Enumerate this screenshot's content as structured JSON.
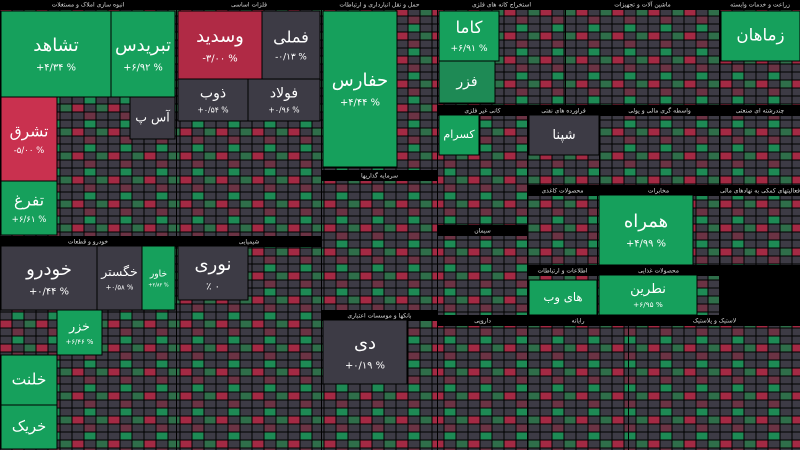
{
  "chart_data": {
    "type": "treemap",
    "sectors": [
      {
        "title": "انبوه سازی املاک و مستغلات"
      },
      {
        "title": "فلزات اساسی"
      },
      {
        "title": "حمل و نقل انبارداری و ارتباطات"
      },
      {
        "title": "استخراج کانه های فلزی"
      },
      {
        "title": "ماشین آلات و تجهیزات"
      },
      {
        "title": "زراعت و خدمات وابسته"
      },
      {
        "title": "خودرو و قطعات"
      },
      {
        "title": "شیمیایی"
      },
      {
        "title": "سرمایه گذاریها"
      },
      {
        "title": "بانکها و موسسات اعتباری"
      },
      {
        "title": "کانی غیر فلزی"
      },
      {
        "title": "فراورده های نفتی"
      },
      {
        "title": "واسطه گری مالی و پولی"
      },
      {
        "title": "چندرشته ای صنعتی"
      },
      {
        "title": "سیمان"
      },
      {
        "title": "محصولات کاغذی"
      },
      {
        "title": "مخابرات"
      },
      {
        "title": "فعالیتهای کمکی به نهادهای مالی"
      },
      {
        "title": "اطلاعات و ارتباطات"
      },
      {
        "title": "محصولات غذایی"
      },
      {
        "title": "دارویی"
      },
      {
        "title": "رایانه"
      },
      {
        "title": "لاستیک و پلاستیک"
      }
    ],
    "tiles": [
      {
        "name": "تشاهد",
        "change": "+۴/۳۴ %",
        "color": "#16a05c"
      },
      {
        "name": "تبریدس",
        "change": "+۶/۹۲ %",
        "color": "#16a05c"
      },
      {
        "name": "تشرق",
        "change": "-۵/۰۰ %",
        "color": "#c9314f"
      },
      {
        "name": "تفرغ",
        "change": "+۶/۶۱ %",
        "color": "#16a05c"
      },
      {
        "name": "آس پ",
        "color": "#3d3b45"
      },
      {
        "name": "وسدید",
        "change": "-۳/۰۰ %",
        "color": "#b02a45"
      },
      {
        "name": "فملی",
        "change": "-۰/۱۳ %",
        "color": "#3d3b45"
      },
      {
        "name": "ذوب",
        "change": "+۰/۵۴ %",
        "color": "#3d3b45"
      },
      {
        "name": "فولاد",
        "change": "+۰/۹۶ %",
        "color": "#3d3b45"
      },
      {
        "name": "حفارس",
        "change": "+۴/۴۴ %",
        "color": "#16a05c"
      },
      {
        "name": "کاما",
        "change": "+۶/۹۱ %",
        "color": "#16a05c"
      },
      {
        "name": "فزر",
        "color": "#1e8a55"
      },
      {
        "name": "زماهان",
        "color": "#16a05c"
      },
      {
        "name": "خودرو",
        "change": "+۰/۴۴ %",
        "color": "#3d3b45"
      },
      {
        "name": "خگستر",
        "change": "+۰/۵۸ %",
        "color": "#3d3b45"
      },
      {
        "name": "خاور",
        "change": "+۲/۸۲ %",
        "color": "#16a05c"
      },
      {
        "name": "خزر",
        "change": "+۶/۴۶ %",
        "color": "#16a05c"
      },
      {
        "name": "خلنت",
        "color": "#16a05c"
      },
      {
        "name": "خریک",
        "color": "#16a05c"
      },
      {
        "name": "نوری",
        "change": "٪ ۰",
        "color": "#3d3b45"
      },
      {
        "name": "دی",
        "change": "+۰/۱۹ %",
        "color": "#3d3b45"
      },
      {
        "name": "شپنا",
        "color": "#3d3b45"
      },
      {
        "name": "همراه",
        "change": "+۴/۹۹ %",
        "color": "#16a05c"
      },
      {
        "name": "نطرین",
        "change": "+۶/۹۵ %",
        "color": "#16a05c"
      },
      {
        "name": "های وب",
        "color": "#16a05c"
      },
      {
        "name": "کسرام",
        "color": "#16a05c"
      }
    ]
  }
}
